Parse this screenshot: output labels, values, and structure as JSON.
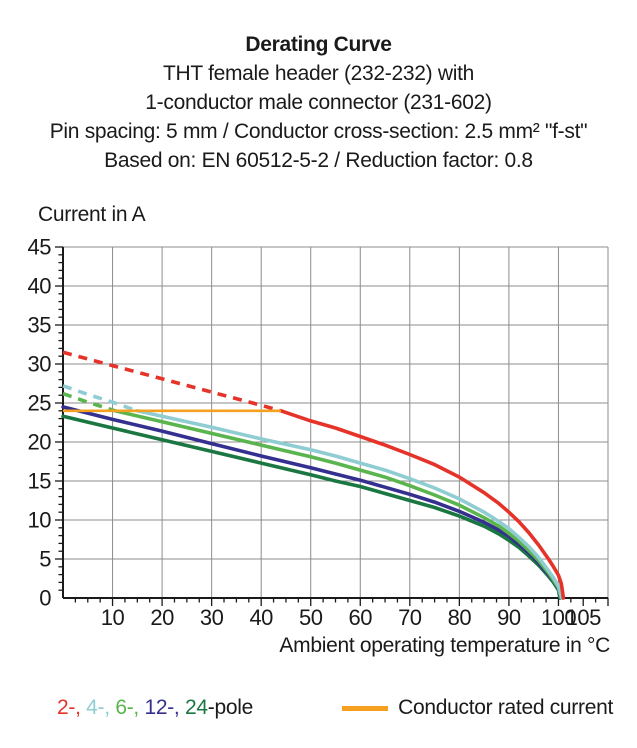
{
  "header": {
    "title": "Derating Curve",
    "subtitle_lines": [
      "THT female header (232-232) with",
      "1-conductor male connector (231-602)",
      "Pin spacing: 5 mm / Conductor cross-section: 2.5 mm² \"f-st\"",
      "Based on: EN 60512-5-2 / Reduction factor: 0.8"
    ]
  },
  "chart_data": {
    "type": "line",
    "title": "Derating Curve",
    "ylabel": "Current in A",
    "xlabel": "Ambient operating temperature in °C",
    "xlim": [
      0,
      110
    ],
    "ylim": [
      0,
      45
    ],
    "x_tick_labels": [
      10,
      20,
      30,
      40,
      50,
      60,
      70,
      80,
      90,
      100,
      105
    ],
    "y_tick_labels": [
      0,
      5,
      10,
      15,
      20,
      25,
      30,
      35,
      40,
      45
    ],
    "grid": true,
    "grid_color": "#8C8C8C",
    "axis_color": "#1a1a1a",
    "dashed_note": "segments above conductor rated current (24 A) are drawn dashed",
    "series": [
      {
        "name": "2-pole",
        "color": "#E5332A",
        "dashed_until_x": 44,
        "points": [
          [
            0,
            31.5
          ],
          [
            10,
            29.8
          ],
          [
            20,
            28.1
          ],
          [
            30,
            26.4
          ],
          [
            40,
            24.7
          ],
          [
            44,
            24
          ],
          [
            50,
            22.7
          ],
          [
            55,
            21.8
          ],
          [
            60,
            20.7
          ],
          [
            65,
            19.6
          ],
          [
            70,
            18.4
          ],
          [
            75,
            17.1
          ],
          [
            80,
            15.5
          ],
          [
            85,
            13.5
          ],
          [
            88,
            12.1
          ],
          [
            90,
            11
          ],
          [
            92,
            9.8
          ],
          [
            94,
            8.4
          ],
          [
            96,
            6.8
          ],
          [
            98,
            5
          ],
          [
            99,
            4
          ],
          [
            100,
            2.9
          ],
          [
            100.6,
            1.8
          ],
          [
            101,
            0
          ]
        ]
      },
      {
        "name": "4-pole",
        "color": "#8FCDD3",
        "dashed_until_x": 15,
        "points": [
          [
            0,
            27.2
          ],
          [
            5,
            26.1
          ],
          [
            10,
            25.1
          ],
          [
            15,
            24
          ],
          [
            20,
            23.3
          ],
          [
            30,
            21.9
          ],
          [
            40,
            20.4
          ],
          [
            50,
            19
          ],
          [
            55,
            18.2
          ],
          [
            60,
            17.3
          ],
          [
            65,
            16.4
          ],
          [
            70,
            15.3
          ],
          [
            75,
            14.1
          ],
          [
            80,
            12.7
          ],
          [
            85,
            11
          ],
          [
            88,
            9.8
          ],
          [
            90,
            8.9
          ],
          [
            92,
            7.8
          ],
          [
            94,
            6.6
          ],
          [
            96,
            5.2
          ],
          [
            98,
            3.5
          ],
          [
            99,
            2.6
          ],
          [
            100,
            1.5
          ],
          [
            100.7,
            0
          ]
        ]
      },
      {
        "name": "6-pole",
        "color": "#5BB54E",
        "dashed_until_x": 10.5,
        "points": [
          [
            0,
            26.2
          ],
          [
            5,
            25.1
          ],
          [
            10.5,
            24
          ],
          [
            20,
            22.6
          ],
          [
            30,
            21.1
          ],
          [
            40,
            19.6
          ],
          [
            50,
            18.1
          ],
          [
            55,
            17.3
          ],
          [
            60,
            16.4
          ],
          [
            65,
            15.5
          ],
          [
            70,
            14.4
          ],
          [
            75,
            13.2
          ],
          [
            80,
            11.9
          ],
          [
            85,
            10.3
          ],
          [
            88,
            9.2
          ],
          [
            90,
            8.3
          ],
          [
            92,
            7.3
          ],
          [
            94,
            6.1
          ],
          [
            96,
            4.8
          ],
          [
            98,
            3.2
          ],
          [
            99,
            2.3
          ],
          [
            100,
            1.3
          ],
          [
            100.5,
            0
          ]
        ]
      },
      {
        "name": "12-pole",
        "color": "#35308F",
        "dashed_until_x": null,
        "points": [
          [
            0,
            24.5
          ],
          [
            10,
            22.9
          ],
          [
            20,
            21.4
          ],
          [
            30,
            19.8
          ],
          [
            40,
            18.2
          ],
          [
            50,
            16.7
          ],
          [
            55,
            15.9
          ],
          [
            60,
            15.1
          ],
          [
            65,
            14.2
          ],
          [
            70,
            13.3
          ],
          [
            75,
            12.3
          ],
          [
            80,
            11.1
          ],
          [
            85,
            9.7
          ],
          [
            88,
            8.7
          ],
          [
            90,
            7.9
          ],
          [
            92,
            6.9
          ],
          [
            94,
            5.8
          ],
          [
            96,
            4.5
          ],
          [
            98,
            3
          ],
          [
            99,
            2.2
          ],
          [
            100,
            1.2
          ],
          [
            100.4,
            0
          ]
        ]
      },
      {
        "name": "24-pole",
        "color": "#1B7742",
        "dashed_until_x": null,
        "points": [
          [
            0,
            23.3
          ],
          [
            10,
            21.8
          ],
          [
            20,
            20.3
          ],
          [
            30,
            18.8
          ],
          [
            40,
            17.3
          ],
          [
            50,
            15.8
          ],
          [
            55,
            15
          ],
          [
            60,
            14.3
          ],
          [
            65,
            13.4
          ],
          [
            70,
            12.5
          ],
          [
            75,
            11.6
          ],
          [
            80,
            10.5
          ],
          [
            85,
            9.2
          ],
          [
            88,
            8.2
          ],
          [
            90,
            7.4
          ],
          [
            92,
            6.5
          ],
          [
            94,
            5.4
          ],
          [
            96,
            4.2
          ],
          [
            98,
            2.8
          ],
          [
            99,
            2
          ],
          [
            100,
            1
          ],
          [
            100.3,
            0
          ]
        ]
      }
    ],
    "rated_current_line": {
      "label": "Conductor rated current",
      "value_a": 24,
      "x_from": 0,
      "x_to": 44,
      "color": "#F5A01E"
    }
  },
  "legend": {
    "pole_items": [
      {
        "label": "2-",
        "color": "#E5332A"
      },
      {
        "label": "4-",
        "color": "#8FCDD3"
      },
      {
        "label": "6-",
        "color": "#5BB54E"
      },
      {
        "label": "12-",
        "color": "#35308F"
      },
      {
        "label": "24",
        "color": "#1B7742"
      }
    ],
    "separator": ", ",
    "suffix": "-pole",
    "rated": {
      "label": "Conductor rated current",
      "color": "#F5A01E"
    }
  }
}
